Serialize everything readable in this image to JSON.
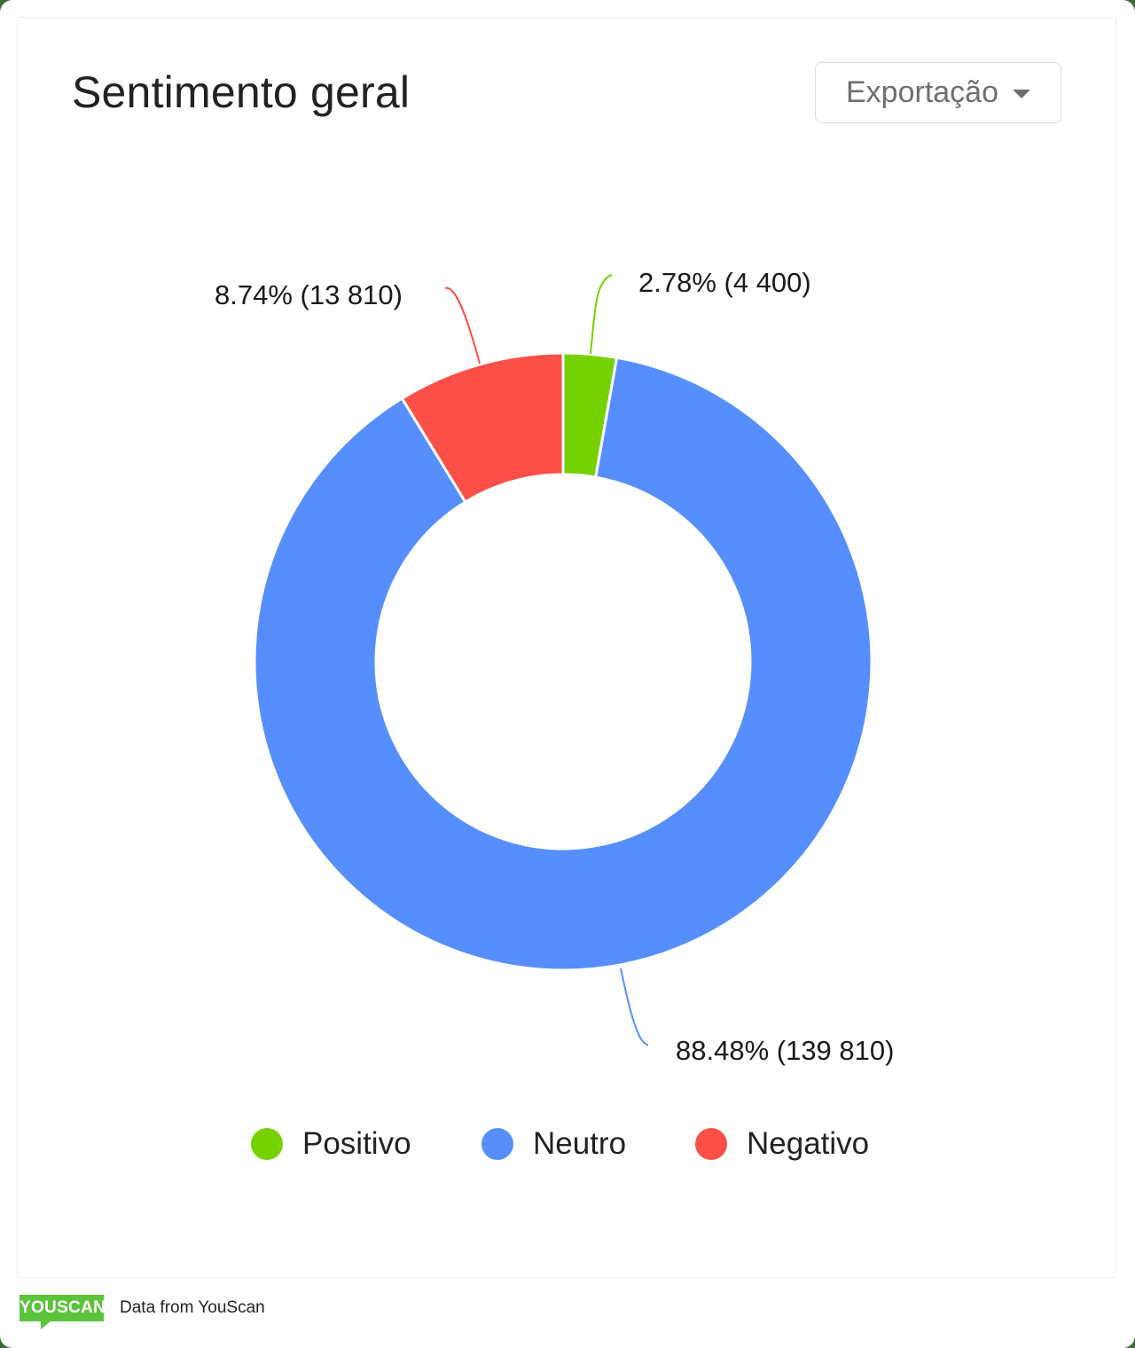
{
  "header": {
    "title": "Sentimento geral",
    "export_label": "Exportação"
  },
  "chart_data": {
    "type": "pie",
    "subtype": "donut",
    "title": "Sentimento geral",
    "categories": [
      "Positivo",
      "Neutro",
      "Negativo"
    ],
    "values": [
      4400,
      139810,
      13810
    ],
    "percentages": [
      2.78,
      88.48,
      8.74
    ],
    "colors": [
      "#76d100",
      "#568ffd",
      "#fc4f48"
    ],
    "labels": [
      "2.78% (4 400)",
      "88.48% (139 810)",
      "8.74% (13 810)"
    ],
    "legend_position": "bottom",
    "start_angle_deg": 0,
    "direction": "clockwise"
  },
  "legend": {
    "items": [
      {
        "label": "Positivo",
        "color": "#76d100"
      },
      {
        "label": "Neutro",
        "color": "#568ffd"
      },
      {
        "label": "Negativo",
        "color": "#fc4f48"
      }
    ]
  },
  "footer": {
    "logo_text": "YOUSCAN",
    "source_text": "Data from YouScan"
  }
}
